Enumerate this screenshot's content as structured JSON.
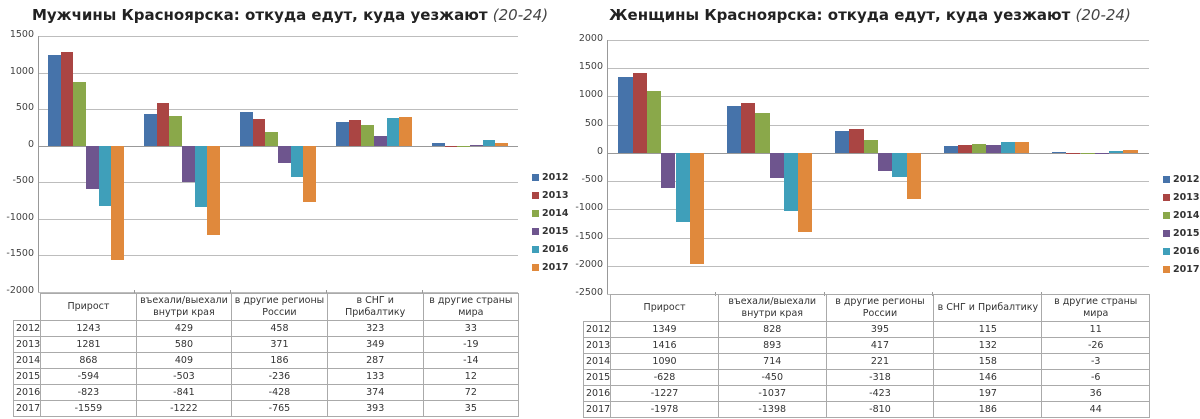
{
  "colors": {
    "2012": "#4673aa",
    "2013": "#aa4543",
    "2014": "#8aa84a",
    "2015": "#6e558e",
    "2016": "#3f9fba",
    "2017": "#e0893c"
  },
  "chart_data": [
    {
      "type": "bar",
      "title": "Мужчины Красноярска: откуда едут, куда уезжают",
      "subtitle": "(20-24)",
      "xlabel": "",
      "ylabel": "",
      "ylim": [
        -2000,
        1500
      ],
      "yticks": [
        1500,
        1000,
        500,
        0,
        -500,
        -1000,
        -1500,
        -2000
      ],
      "grid": true,
      "legend_position": "right",
      "categories": [
        "Прирост",
        "въехали/выехали внутри края",
        "в другие регионы России",
        "в СНГ и Прибалтику",
        "в другие страны мира"
      ],
      "category_lines": [
        [
          "Прирост"
        ],
        [
          "въехали/выехали",
          "внутри края"
        ],
        [
          "в другие регионы",
          "России"
        ],
        [
          "в СНГ и Прибалтику"
        ],
        [
          "в другие страны",
          "мира"
        ]
      ],
      "series": [
        {
          "name": "2012",
          "values": [
            1243,
            429,
            458,
            323,
            33
          ]
        },
        {
          "name": "2013",
          "values": [
            1281,
            580,
            371,
            349,
            -19
          ]
        },
        {
          "name": "2014",
          "values": [
            868,
            409,
            186,
            287,
            -14
          ]
        },
        {
          "name": "2015",
          "values": [
            -594,
            -503,
            -236,
            133,
            12
          ]
        },
        {
          "name": "2016",
          "values": [
            -823,
            -841,
            -428,
            374,
            72
          ]
        },
        {
          "name": "2017",
          "values": [
            -1559,
            -1222,
            -765,
            393,
            35
          ]
        }
      ]
    },
    {
      "type": "bar",
      "title": "Женщины Красноярска: откуда едут, куда уезжают",
      "subtitle": "(20-24)",
      "xlabel": "",
      "ylabel": "",
      "ylim": [
        -2500,
        2000
      ],
      "yticks": [
        2000,
        1500,
        1000,
        500,
        0,
        -500,
        -1000,
        -1500,
        -2000,
        -2500
      ],
      "grid": true,
      "legend_position": "right",
      "categories": [
        "Прирост",
        "въехали/выехали внутри края",
        "в другие регионы России",
        "в СНГ и Прибалтику",
        "в другие страны мира"
      ],
      "category_lines": [
        [
          "Прирост"
        ],
        [
          "въехали/выехали",
          "внутри края"
        ],
        [
          "в другие регионы",
          "России"
        ],
        [
          "в СНГ и Прибалтику"
        ],
        [
          "в другие страны мира"
        ]
      ],
      "series": [
        {
          "name": "2012",
          "values": [
            1349,
            828,
            395,
            115,
            11
          ]
        },
        {
          "name": "2013",
          "values": [
            1416,
            893,
            417,
            132,
            -26
          ]
        },
        {
          "name": "2014",
          "values": [
            1090,
            714,
            221,
            158,
            -3
          ]
        },
        {
          "name": "2015",
          "values": [
            -628,
            -450,
            -318,
            146,
            -6
          ]
        },
        {
          "name": "2016",
          "values": [
            -1227,
            -1037,
            -423,
            197,
            36
          ]
        },
        {
          "name": "2017",
          "values": [
            -1978,
            -1398,
            -810,
            186,
            44
          ]
        }
      ]
    }
  ]
}
